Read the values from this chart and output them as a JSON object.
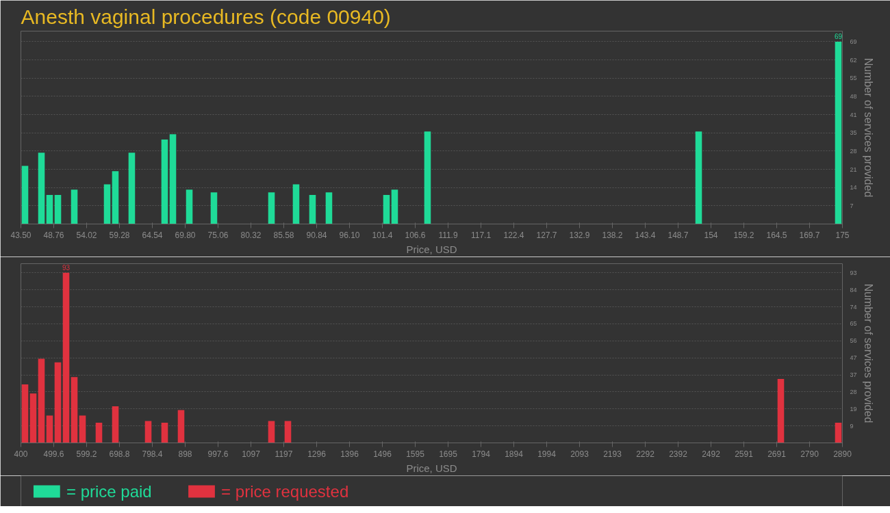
{
  "chart_data": [
    {
      "type": "bar",
      "title": "Anesth vaginal procedures (code 00940)",
      "xlabel": "Price, USD",
      "ylabel": "Number of services provided",
      "x": [
        44.16,
        46.79,
        48.1,
        49.42,
        52.05,
        57.31,
        58.62,
        61.25,
        66.51,
        67.83,
        70.46,
        74.4,
        83.61,
        87.55,
        90.18,
        92.81,
        102.02,
        103.33,
        108.59,
        151.99,
        174.34
      ],
      "series": [
        {
          "name": "= price paid",
          "color": "#1fdb98",
          "values": [
            22,
            27,
            11,
            11,
            13,
            15,
            20,
            27,
            32,
            34,
            13,
            12,
            12,
            15,
            11,
            12,
            11,
            13,
            35,
            35,
            69
          ],
          "value_labels": [
            null,
            null,
            null,
            null,
            null,
            null,
            null,
            null,
            null,
            null,
            null,
            null,
            null,
            null,
            null,
            null,
            null,
            null,
            null,
            null,
            "69"
          ]
        }
      ],
      "xlim": [
        43.5,
        175
      ],
      "xticks": [
        {
          "value": 43.5,
          "label": "43.50"
        },
        48.76,
        54.02,
        59.28,
        64.54,
        {
          "value": 69.8,
          "label": "69.80"
        },
        75.06,
        80.32,
        85.58,
        90.84,
        {
          "value": 96.1,
          "label": "96.10"
        },
        {
          "value": 101.36,
          "label": "101.4"
        },
        {
          "value": 106.62,
          "label": "106.6"
        },
        {
          "value": 111.88,
          "label": "111.9"
        },
        {
          "value": 117.14,
          "label": "117.1"
        },
        122.4,
        {
          "value": 127.66,
          "label": "127.7"
        },
        {
          "value": 132.92,
          "label": "132.9"
        },
        {
          "value": 138.18,
          "label": "138.2"
        },
        {
          "value": 143.44,
          "label": "143.4"
        },
        148.7,
        {
          "value": 153.96,
          "label": "154"
        },
        {
          "value": 159.22,
          "label": "159.2"
        },
        {
          "value": 164.48,
          "label": "164.5"
        },
        {
          "value": 169.74,
          "label": "169.7"
        },
        175
      ],
      "ylim": [
        0,
        73
      ],
      "yticks": [
        {
          "value": 6.9,
          "label": "7"
        },
        {
          "value": 13.8,
          "label": "14"
        },
        {
          "value": 20.7,
          "label": "21"
        },
        {
          "value": 27.6,
          "label": "28"
        },
        {
          "value": 34.5,
          "label": "35"
        },
        {
          "value": 41.4,
          "label": "41"
        },
        {
          "value": 48.3,
          "label": "48"
        },
        {
          "value": 55.2,
          "label": "55"
        },
        {
          "value": 62.1,
          "label": "62"
        },
        69
      ],
      "grid": "y",
      "legend": "bottom"
    },
    {
      "type": "bar",
      "xlabel": "Price, USD",
      "ylabel": "Number of services provided",
      "x": [
        412.45,
        437.35,
        462.25,
        487.15,
        512.05,
        536.95,
        561.85,
        586.75,
        636.55,
        686.35,
        785.95,
        835.75,
        885.55,
        1159.45,
        1209.25,
        2703.25,
        2877.55
      ],
      "series": [
        {
          "name": "= price requested",
          "color": "#e0323f",
          "values": [
            32,
            27,
            46,
            15,
            44,
            93,
            36,
            15,
            11,
            20,
            12,
            11,
            18,
            12,
            12,
            35,
            11
          ],
          "value_labels": [
            null,
            null,
            null,
            null,
            null,
            "93",
            null,
            null,
            null,
            null,
            null,
            null,
            null,
            null,
            null,
            null,
            null
          ]
        }
      ],
      "xlim": [
        400,
        2890
      ],
      "xticks": [
        400,
        499.6,
        599.2,
        698.8,
        798.4,
        898,
        997.6,
        {
          "value": 1097.2,
          "label": "1097"
        },
        {
          "value": 1196.8,
          "label": "1197"
        },
        {
          "value": 1296.4,
          "label": "1296"
        },
        1396,
        {
          "value": 1495.6,
          "label": "1496"
        },
        {
          "value": 1595.2,
          "label": "1595"
        },
        {
          "value": 1694.8,
          "label": "1695"
        },
        {
          "value": 1794.4,
          "label": "1794"
        },
        1894,
        {
          "value": 1993.6,
          "label": "1994"
        },
        {
          "value": 2093.2,
          "label": "2093"
        },
        {
          "value": 2192.8,
          "label": "2193"
        },
        {
          "value": 2292.4,
          "label": "2292"
        },
        2392,
        {
          "value": 2491.6,
          "label": "2492"
        },
        {
          "value": 2591.2,
          "label": "2591"
        },
        {
          "value": 2690.8,
          "label": "2691"
        },
        {
          "value": 2790.4,
          "label": "2790"
        },
        2890
      ],
      "ylim": [
        0,
        98
      ],
      "yticks": [
        {
          "value": 9.3,
          "label": "9"
        },
        {
          "value": 18.6,
          "label": "19"
        },
        {
          "value": 27.9,
          "label": "28"
        },
        {
          "value": 37.2,
          "label": "37"
        },
        {
          "value": 46.5,
          "label": "47"
        },
        {
          "value": 55.8,
          "label": "56"
        },
        {
          "value": 65.1,
          "label": "65"
        },
        {
          "value": 74.4,
          "label": "74"
        },
        {
          "value": 83.7,
          "label": "84"
        },
        93
      ],
      "grid": "y",
      "legend": "bottom"
    }
  ]
}
